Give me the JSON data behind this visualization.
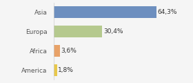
{
  "categories": [
    "Asia",
    "Europa",
    "Africa",
    "America"
  ],
  "values": [
    64.3,
    30.4,
    3.6,
    1.8
  ],
  "bar_colors": [
    "#6d8fbf",
    "#b5c98e",
    "#e8a268",
    "#e8c84a"
  ],
  "labels": [
    "64,3%",
    "30,4%",
    "3,6%",
    "1,8%"
  ],
  "xlim": [
    0,
    85
  ],
  "background_color": "#f5f5f5",
  "bar_height": 0.6,
  "label_fontsize": 6.5,
  "tick_fontsize": 6.5
}
